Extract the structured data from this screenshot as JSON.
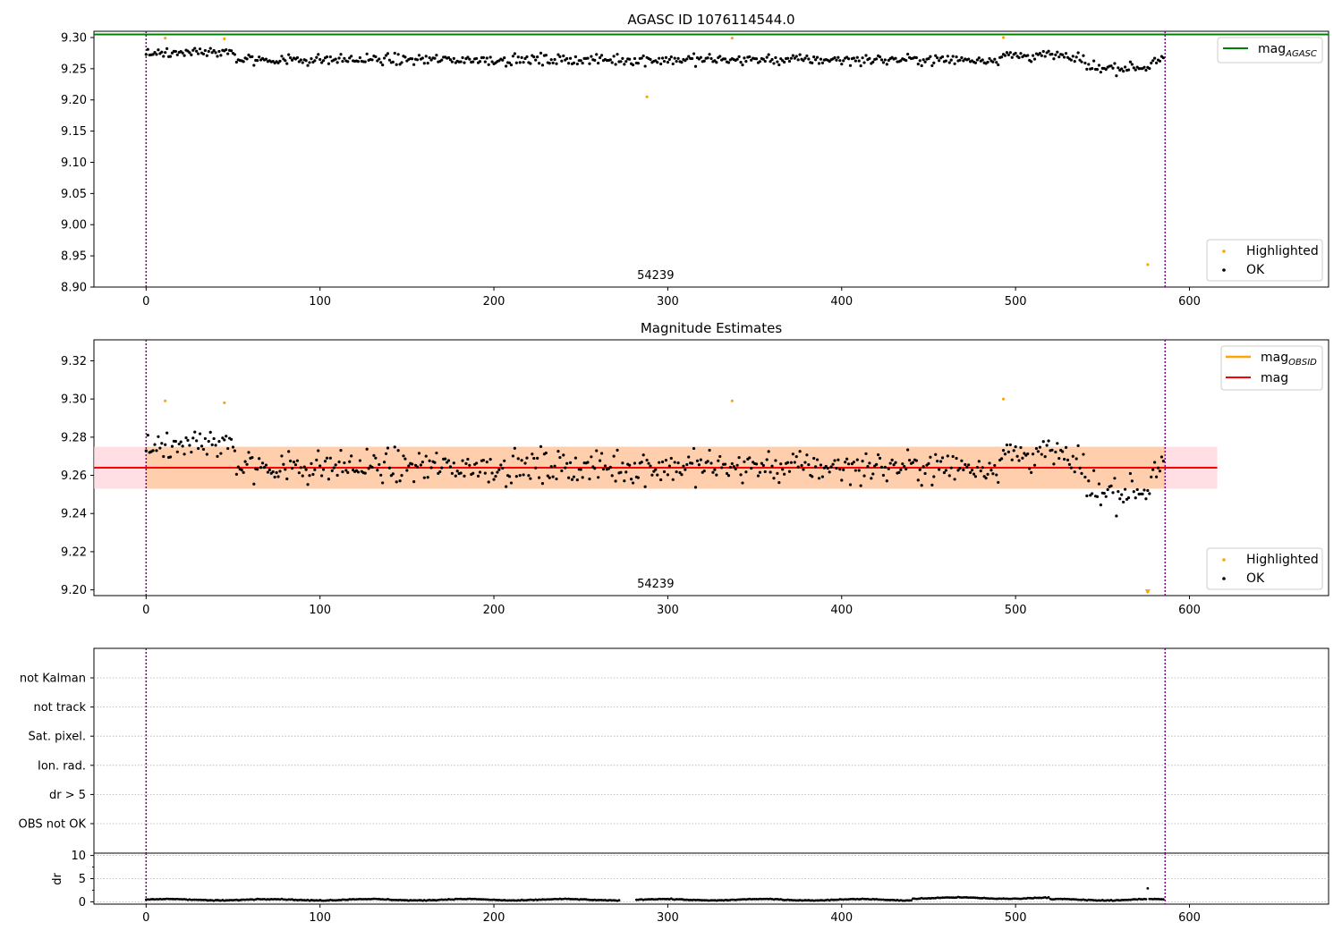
{
  "colors": {
    "ok": "#000000",
    "highlighted": "#ffa500",
    "mag_agasc": "#008000",
    "mag": "#ff0000",
    "mag_obsid": "#ffa500",
    "band_obsid": "#ffc896",
    "band_mag": "#ffd2d9",
    "obsid_line": "#800080",
    "grid": "#b0b0b0"
  },
  "chart_data": [
    {
      "type": "scatter",
      "title": "AGASC ID 1076114544.0",
      "xlim": [
        -30,
        680
      ],
      "ylim": [
        8.9,
        9.31
      ],
      "xticks": [
        "0",
        "100",
        "200",
        "300",
        "400",
        "500",
        "600"
      ],
      "yticks": [
        "9.30",
        "9.25",
        "9.20",
        "9.15",
        "9.10",
        "9.05",
        "9.00",
        "8.95",
        "8.90"
      ],
      "obsid_label": "54239",
      "obsid_bounds": [
        0,
        586
      ],
      "reference_line": {
        "name": "mag",
        "subscript": "AGASC",
        "value": 9.305
      },
      "legend_top": [
        {
          "label": "mag",
          "sub": "AGASC"
        }
      ],
      "legend_bottom": [
        "Highlighted",
        "OK"
      ],
      "series": [
        {
          "name": "OK",
          "n": 586,
          "x_range": [
            0,
            586
          ],
          "typical_y_range": [
            9.24,
            9.29
          ]
        },
        {
          "name": "Highlighted",
          "points": [
            [
              11,
              9.299
            ],
            [
              45,
              9.298
            ],
            [
              288,
              9.205
            ],
            [
              337,
              9.299
            ],
            [
              493,
              9.3
            ],
            [
              576,
              8.936
            ]
          ]
        }
      ]
    },
    {
      "type": "scatter",
      "title": "Magnitude Estimates",
      "xlim": [
        -30,
        680
      ],
      "ylim": [
        9.197,
        9.331
      ],
      "xticks": [
        "0",
        "100",
        "200",
        "300",
        "400",
        "500",
        "600"
      ],
      "yticks": [
        "9.32",
        "9.30",
        "9.28",
        "9.26",
        "9.24",
        "9.22",
        "9.20"
      ],
      "obsid_label": "54239",
      "mag_obsid": 9.264,
      "mag": 9.264,
      "band_obsid": [
        9.253,
        9.275
      ],
      "band_mag": [
        9.253,
        9.275
      ],
      "legend_top": [
        {
          "label": "mag",
          "sub": "OBSID"
        },
        {
          "label": "mag",
          "sub": ""
        }
      ],
      "legend_bottom": [
        "Highlighted",
        "OK"
      ],
      "series": [
        {
          "name": "OK",
          "n": 586,
          "typical_y_range": [
            9.232,
            9.291
          ]
        },
        {
          "name": "Highlighted",
          "points": [
            [
              11,
              9.299
            ],
            [
              45,
              9.298
            ],
            [
              337,
              9.299
            ],
            [
              493,
              9.3
            ],
            [
              576,
              9.199
            ]
          ]
        }
      ]
    },
    {
      "type": "scatter",
      "categories": [
        "not Kalman",
        "not track",
        "Sat. pixel.",
        "Ion. rad.",
        "dr > 5",
        "OBS not OK"
      ],
      "xlim": [
        -30,
        680
      ],
      "flags": []
    },
    {
      "type": "scatter",
      "ylabel": "dr",
      "xlim": [
        -30,
        680
      ],
      "ylim": [
        -0.5,
        10.5
      ],
      "xticks": [
        "0",
        "100",
        "200",
        "300",
        "400",
        "500",
        "600"
      ],
      "yticks": [
        "10",
        "5",
        "0"
      ],
      "series": [
        {
          "name": "dr",
          "n": 586,
          "typical_y_range": [
            0.1,
            1.3
          ],
          "outlier": [
            576,
            2.9
          ]
        }
      ]
    }
  ]
}
